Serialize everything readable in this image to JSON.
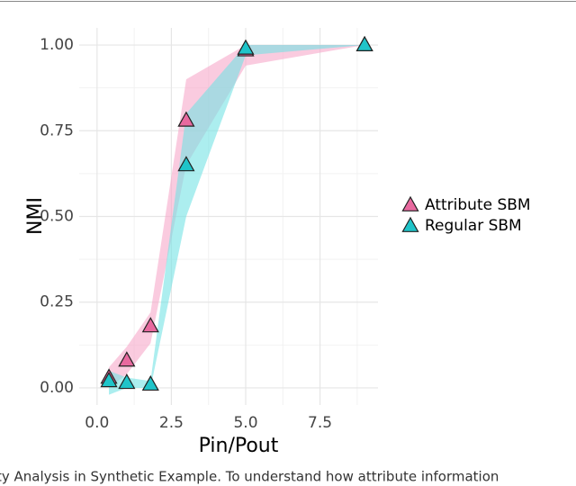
{
  "chart_data": {
    "type": "scatter",
    "xlabel": "Pin/Pout",
    "ylabel": "NMI",
    "x": [
      0.4,
      1.0,
      1.8,
      3.0,
      5.0,
      9.0
    ],
    "series": [
      {
        "name": "Attribute SBM",
        "color": "#e8699f",
        "band_color": "#f6a9c9",
        "values": [
          0.03,
          0.08,
          0.18,
          0.78,
          0.985,
          1.0
        ],
        "lower": [
          0.0,
          0.04,
          0.13,
          0.65,
          0.94,
          1.0
        ],
        "upper": [
          0.06,
          0.12,
          0.22,
          0.9,
          1.0,
          1.0
        ]
      },
      {
        "name": "Regular SBM",
        "color": "#1fc4c9",
        "band_color": "#74e2e4",
        "values": [
          0.02,
          0.015,
          0.01,
          0.65,
          0.99,
          1.0
        ],
        "lower": [
          -0.02,
          0.0,
          0.0,
          0.5,
          0.97,
          1.0
        ],
        "upper": [
          0.05,
          0.03,
          0.02,
          0.8,
          1.0,
          1.0
        ]
      }
    ],
    "xlim": [
      -0.6,
      9.45
    ],
    "ylim": [
      -0.05,
      1.05
    ],
    "xticks": [
      {
        "value": 0,
        "label": "0.0"
      },
      {
        "value": 2.5,
        "label": "2.5"
      },
      {
        "value": 5,
        "label": "5.0"
      },
      {
        "value": 7.5,
        "label": "7.5"
      }
    ],
    "yticks": [
      {
        "value": 0,
        "label": "0.00"
      },
      {
        "value": 0.25,
        "label": "0.25"
      },
      {
        "value": 0.5,
        "label": "0.50"
      },
      {
        "value": 0.75,
        "label": "0.75"
      },
      {
        "value": 1,
        "label": "1.00"
      }
    ],
    "grid": true,
    "legend": "right"
  },
  "caption": "ty Analysis in Synthetic Example. To understand how attribute information"
}
